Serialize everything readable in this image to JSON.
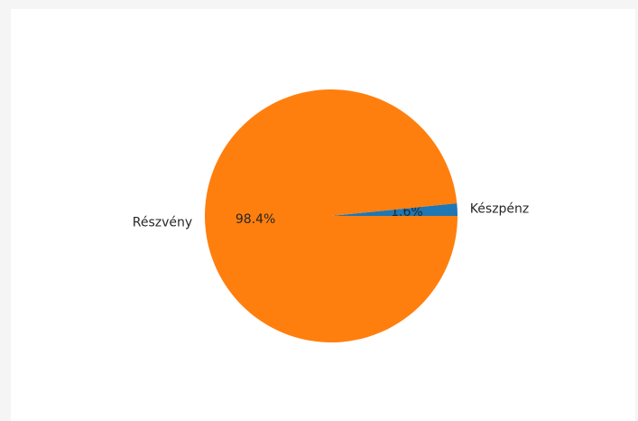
{
  "chart_data": {
    "type": "pie",
    "title": "",
    "slices": [
      {
        "label": "Készpénz",
        "value": 1.6,
        "pct_label": "1.6%",
        "color": "#1f77b4"
      },
      {
        "label": "Részvény",
        "value": 98.4,
        "pct_label": "98.4%",
        "color": "#ff7f0e"
      }
    ],
    "start_angle": 0,
    "direction": "counterclockwise"
  }
}
